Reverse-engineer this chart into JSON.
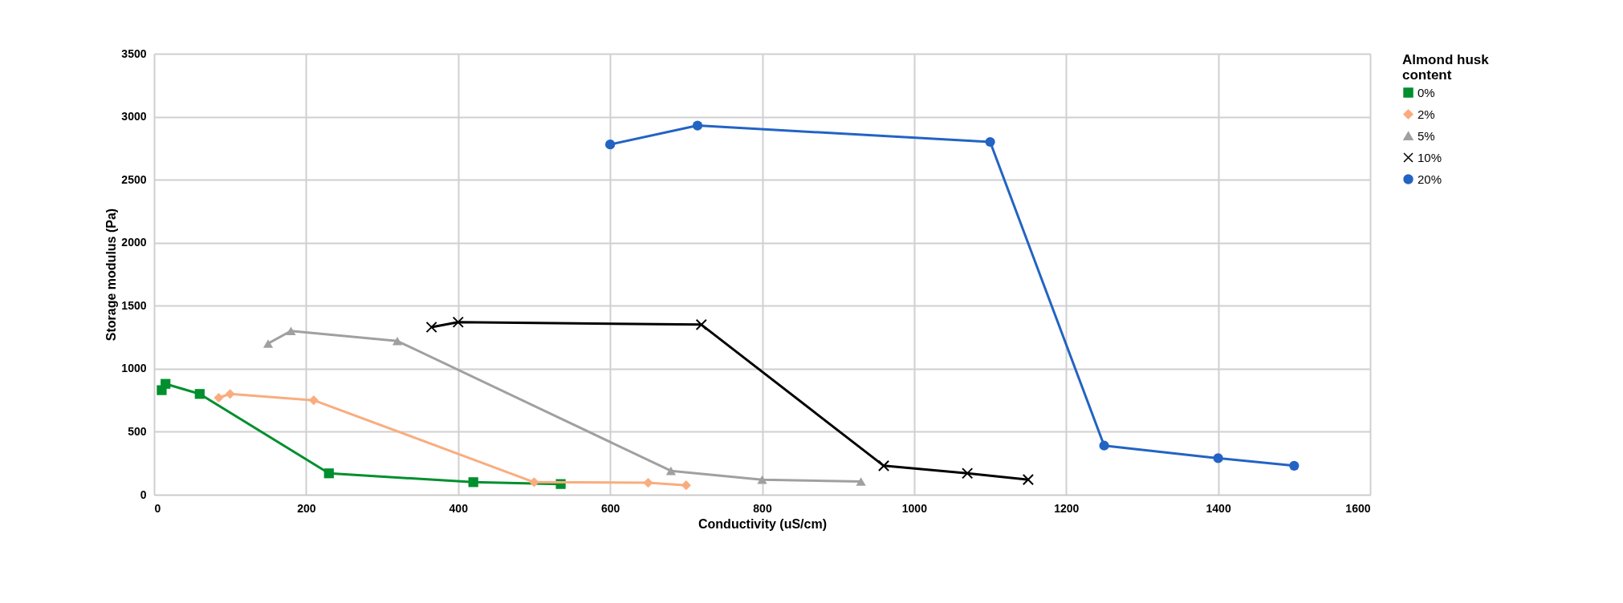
{
  "chart_data": {
    "type": "line",
    "xlabel": "Conductivity (uS/cm)",
    "ylabel": "Storage modulus (Pa)",
    "legend_title": "Almond husk content",
    "xlim": [
      0,
      1600
    ],
    "xticks": [
      0,
      200,
      400,
      600,
      800,
      1000,
      1200,
      1400,
      1600
    ],
    "ylim": [
      0,
      3500
    ],
    "yticks": [
      0,
      500,
      1000,
      1500,
      2000,
      2500,
      3000,
      3500
    ],
    "grid": true,
    "legend": "right",
    "series": [
      {
        "name": "0%",
        "color": "#008f2e",
        "marker": "square",
        "x": [
          10,
          15,
          60,
          230,
          420,
          535
        ],
        "values": [
          830,
          880,
          800,
          170,
          100,
          85
        ]
      },
      {
        "name": "2%",
        "color": "#f9ad7f",
        "marker": "diamond",
        "x": [
          85,
          100,
          210,
          500,
          650,
          700
        ],
        "values": [
          770,
          800,
          750,
          100,
          95,
          75
        ]
      },
      {
        "name": "5%",
        "color": "#a0a0a0",
        "marker": "triangle",
        "x": [
          150,
          180,
          320,
          680,
          800,
          930
        ],
        "values": [
          1200,
          1300,
          1220,
          190,
          120,
          105
        ]
      },
      {
        "name": "10%",
        "color": "#000000",
        "marker": "cross",
        "x": [
          365,
          400,
          720,
          960,
          1070,
          1150
        ],
        "values": [
          1330,
          1370,
          1350,
          230,
          170,
          120
        ]
      },
      {
        "name": "20%",
        "color": "#2363c4",
        "marker": "circle",
        "x": [
          600,
          715,
          1100,
          1250,
          1400,
          1500
        ],
        "values": [
          2780,
          2930,
          2800,
          390,
          290,
          230
        ]
      }
    ]
  }
}
